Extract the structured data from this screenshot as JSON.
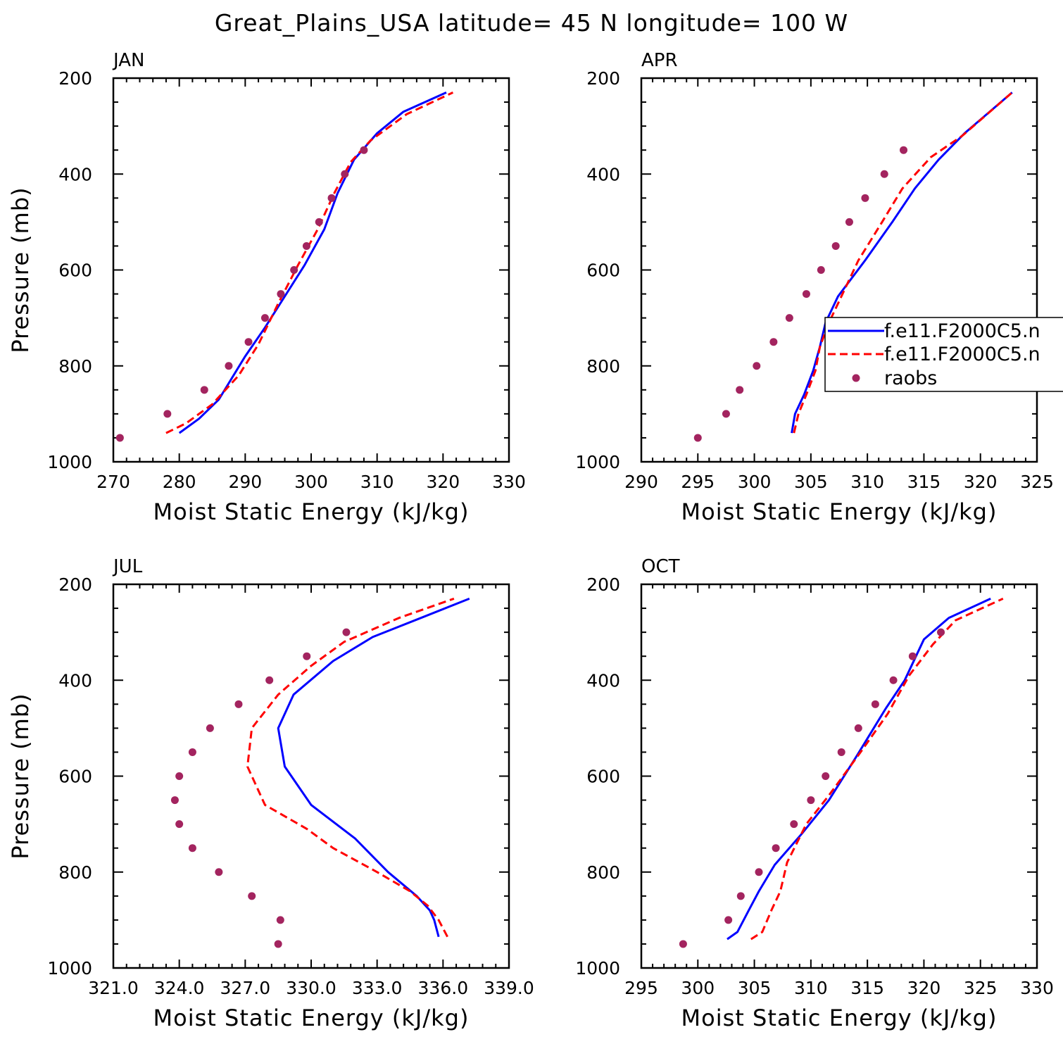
{
  "chart_data": {
    "title": "Great_Plains_USA  latitude= 45 N longitude= 100 W",
    "type": "line",
    "series_styles": [
      {
        "name": "f.e11.F2000C5.n",
        "color": "#0000ff",
        "style": "solid"
      },
      {
        "name": "f.e11.F2000C5.n",
        "color": "#ff0000",
        "style": "dashed"
      },
      {
        "name": "raobs",
        "color": "#a3245f",
        "style": "markers"
      }
    ],
    "legend": {
      "placement": "right-middle of APR panel",
      "entries": [
        "f.e11.F2000C5.n",
        "f.e11.F2000C5.n",
        "raobs"
      ]
    },
    "panels": [
      {
        "label": "JAN",
        "xlabel": "Moist Static Energy (kJ/kg)",
        "ylabel": "Pressure (mb)",
        "xlim": [
          270,
          330
        ],
        "ylim": [
          1000,
          200
        ],
        "x_ticks": [
          "270",
          "280",
          "290",
          "300",
          "310",
          "320",
          "330"
        ],
        "y_ticks": [
          "200",
          "400",
          "600",
          "800",
          "1000"
        ],
        "series": [
          {
            "name": "f.e11.F2000C5.n",
            "points": [
              [
                280.0,
                940
              ],
              [
                283.0,
                910
              ],
              [
                286.0,
                870
              ],
              [
                290.0,
                780
              ],
              [
                293.0,
                720
              ],
              [
                296.0,
                655
              ],
              [
                299.0,
                590
              ],
              [
                302.0,
                515
              ],
              [
                304.0,
                440
              ],
              [
                306.5,
                370
              ],
              [
                310.0,
                315
              ],
              [
                314.0,
                270
              ],
              [
                320.5,
                230
              ]
            ]
          },
          {
            "name": "f.e11.F2000C5.n",
            "points": [
              [
                278.0,
                940
              ],
              [
                281.0,
                920
              ],
              [
                285.0,
                880
              ],
              [
                289.0,
                820
              ],
              [
                292.0,
                755
              ],
              [
                295.0,
                670
              ],
              [
                298.0,
                590
              ],
              [
                301.0,
                515
              ],
              [
                303.5,
                440
              ],
              [
                306.0,
                375
              ],
              [
                309.0,
                330
              ],
              [
                314.5,
                275
              ],
              [
                321.5,
                230
              ]
            ]
          },
          {
            "name": "raobs",
            "points": [
              [
                271.0,
                950
              ],
              [
                278.2,
                900
              ],
              [
                283.8,
                850
              ],
              [
                287.5,
                800
              ],
              [
                290.5,
                750
              ],
              [
                293.0,
                700
              ],
              [
                295.4,
                650
              ],
              [
                297.4,
                600
              ],
              [
                299.3,
                550
              ],
              [
                301.2,
                500
              ],
              [
                303.1,
                450
              ],
              [
                305.1,
                400
              ],
              [
                308.0,
                350
              ]
            ]
          }
        ]
      },
      {
        "label": "APR",
        "xlabel": "Moist Static Energy (kJ/kg)",
        "ylabel": "",
        "xlim": [
          290,
          325
        ],
        "ylim": [
          1000,
          200
        ],
        "x_ticks": [
          "290",
          "295",
          "300",
          "305",
          "310",
          "315",
          "320",
          "325"
        ],
        "y_ticks": [
          "200",
          "400",
          "600",
          "800",
          "1000"
        ],
        "series": [
          {
            "name": "f.e11.F2000C5.n",
            "points": [
              [
                303.3,
                940
              ],
              [
                303.6,
                900
              ],
              [
                304.4,
                860
              ],
              [
                305.2,
                810
              ],
              [
                305.8,
                760
              ],
              [
                306.3,
                710
              ],
              [
                307.4,
                655
              ],
              [
                309.8,
                580
              ],
              [
                312.2,
                500
              ],
              [
                314.2,
                430
              ],
              [
                316.3,
                370
              ],
              [
                318.6,
                315
              ],
              [
                322.8,
                230
              ]
            ]
          },
          {
            "name": "f.e11.F2000C5.n",
            "points": [
              [
                303.5,
                940
              ],
              [
                303.9,
                900
              ],
              [
                304.6,
                860
              ],
              [
                305.4,
                810
              ],
              [
                305.8,
                760
              ],
              [
                306.6,
                710
              ],
              [
                307.7,
                655
              ],
              [
                309.2,
                580
              ],
              [
                311.3,
                500
              ],
              [
                313.1,
                430
              ],
              [
                315.6,
                365
              ],
              [
                318.4,
                320
              ],
              [
                322.8,
                230
              ]
            ]
          },
          {
            "name": "raobs",
            "points": [
              [
                295.0,
                950
              ],
              [
                297.5,
                900
              ],
              [
                298.7,
                850
              ],
              [
                300.2,
                800
              ],
              [
                301.7,
                750
              ],
              [
                303.1,
                700
              ],
              [
                304.6,
                650
              ],
              [
                305.9,
                600
              ],
              [
                307.2,
                550
              ],
              [
                308.4,
                500
              ],
              [
                309.8,
                450
              ],
              [
                311.5,
                400
              ],
              [
                313.2,
                350
              ]
            ]
          }
        ]
      },
      {
        "label": "JUL",
        "xlabel": "Moist Static Energy (kJ/kg)",
        "ylabel": "Pressure (mb)",
        "xlim": [
          321,
          339
        ],
        "ylim": [
          1000,
          200
        ],
        "x_ticks": [
          "321.0",
          "324.0",
          "327.0",
          "330.0",
          "333.0",
          "336.0",
          "339.0"
        ],
        "y_ticks": [
          "200",
          "400",
          "600",
          "800",
          "1000"
        ],
        "series": [
          {
            "name": "f.e11.F2000C5.n",
            "points": [
              [
                335.8,
                935
              ],
              [
                335.6,
                900
              ],
              [
                335.4,
                880
              ],
              [
                334.8,
                850
              ],
              [
                333.5,
                800
              ],
              [
                332.0,
                730
              ],
              [
                330.0,
                660
              ],
              [
                328.8,
                580
              ],
              [
                328.5,
                500
              ],
              [
                329.2,
                430
              ],
              [
                331.0,
                360
              ],
              [
                332.8,
                310
              ],
              [
                335.0,
                270
              ],
              [
                337.2,
                230
              ]
            ]
          },
          {
            "name": "f.e11.F2000C5.n",
            "points": [
              [
                336.2,
                935
              ],
              [
                335.8,
                900
              ],
              [
                335.3,
                870
              ],
              [
                334.5,
                840
              ],
              [
                333.0,
                800
              ],
              [
                331.0,
                750
              ],
              [
                329.8,
                710
              ],
              [
                327.9,
                660
              ],
              [
                327.1,
                580
              ],
              [
                327.3,
                500
              ],
              [
                328.5,
                430
              ],
              [
                330.0,
                370
              ],
              [
                331.5,
                320
              ],
              [
                334.0,
                270
              ],
              [
                336.5,
                230
              ]
            ]
          },
          {
            "name": "raobs",
            "points": [
              [
                328.5,
                950
              ],
              [
                328.6,
                900
              ],
              [
                327.3,
                850
              ],
              [
                325.8,
                800
              ],
              [
                324.6,
                750
              ],
              [
                324.0,
                700
              ],
              [
                323.8,
                650
              ],
              [
                324.0,
                600
              ],
              [
                324.6,
                550
              ],
              [
                325.4,
                500
              ],
              [
                326.7,
                450
              ],
              [
                328.1,
                400
              ],
              [
                329.8,
                350
              ],
              [
                331.6,
                300
              ]
            ]
          }
        ]
      },
      {
        "label": "OCT",
        "xlabel": "Moist Static Energy (kJ/kg)",
        "ylabel": "",
        "xlim": [
          295,
          330
        ],
        "ylim": [
          1000,
          200
        ],
        "x_ticks": [
          "295",
          "300",
          "305",
          "310",
          "315",
          "320",
          "325",
          "330"
        ],
        "y_ticks": [
          "200",
          "400",
          "600",
          "800",
          "1000"
        ],
        "series": [
          {
            "name": "f.e11.F2000C5.n",
            "points": [
              [
                302.6,
                940
              ],
              [
                303.5,
                925
              ],
              [
                304.5,
                880
              ],
              [
                305.4,
                840
              ],
              [
                306.8,
                785
              ],
              [
                309.2,
                720
              ],
              [
                311.6,
                650
              ],
              [
                314.0,
                560
              ],
              [
                316.6,
                460
              ],
              [
                318.3,
                400
              ],
              [
                320.0,
                315
              ],
              [
                322.2,
                270
              ],
              [
                325.9,
                230
              ]
            ]
          },
          {
            "name": "f.e11.F2000C5.n",
            "points": [
              [
                304.7,
                940
              ],
              [
                305.7,
                925
              ],
              [
                306.5,
                880
              ],
              [
                307.3,
                840
              ],
              [
                307.9,
                780
              ],
              [
                309.6,
                700
              ],
              [
                311.6,
                640
              ],
              [
                314.4,
                550
              ],
              [
                316.8,
                470
              ],
              [
                318.7,
                390
              ],
              [
                320.8,
                325
              ],
              [
                322.8,
                275
              ],
              [
                327.0,
                230
              ]
            ]
          },
          {
            "name": "raobs",
            "points": [
              [
                298.7,
                950
              ],
              [
                302.7,
                900
              ],
              [
                303.8,
                850
              ],
              [
                305.4,
                800
              ],
              [
                306.9,
                750
              ],
              [
                308.5,
                700
              ],
              [
                310.0,
                650
              ],
              [
                311.3,
                600
              ],
              [
                312.7,
                550
              ],
              [
                314.2,
                500
              ],
              [
                315.7,
                450
              ],
              [
                317.3,
                400
              ],
              [
                319.0,
                350
              ],
              [
                321.5,
                300
              ]
            ]
          }
        ]
      }
    ]
  }
}
